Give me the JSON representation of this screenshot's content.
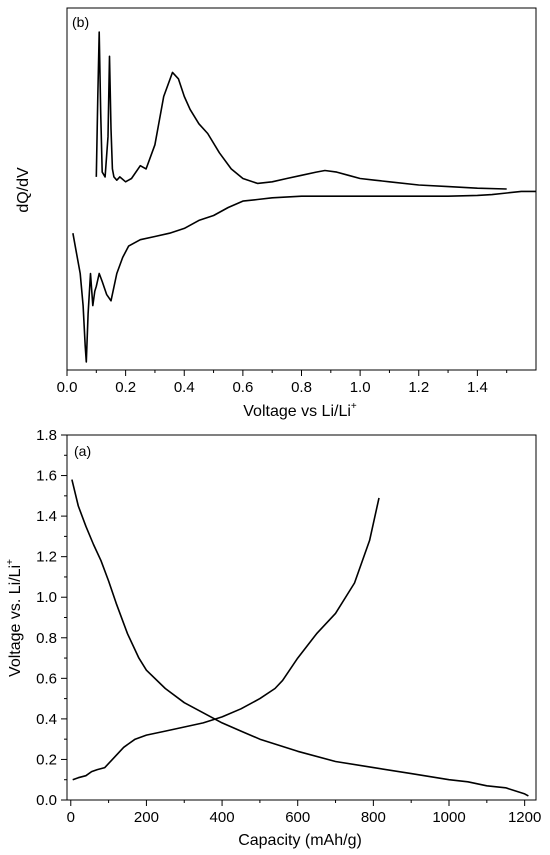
{
  "chart_data": [
    {
      "panel_label": "(b)",
      "type": "line",
      "xlabel": "Voltage vs Li/Li",
      "xlabel_sup": "+",
      "ylabel": "dQ/dV",
      "xlim": [
        0.0,
        1.6
      ],
      "ylim": [
        -1.15,
        1.1
      ],
      "xticks": [
        "0.0",
        "0.2",
        "0.4",
        "0.6",
        "0.8",
        "1.0",
        "1.2",
        "1.4"
      ],
      "yticks_shown": false,
      "series": [
        {
          "x": [
            0.1,
            0.105,
            0.11,
            0.115,
            0.12,
            0.13,
            0.14,
            0.145,
            0.15,
            0.155,
            0.16,
            0.17,
            0.18,
            0.2,
            0.22,
            0.25,
            0.27,
            0.3,
            0.33,
            0.36,
            0.38,
            0.4,
            0.42,
            0.45,
            0.48,
            0.52,
            0.56,
            0.6,
            0.65,
            0.7,
            0.75,
            0.8,
            0.85,
            0.88,
            0.92,
            0.96,
            1.0,
            1.05,
            1.1,
            1.2,
            1.3,
            1.4,
            1.5
          ],
          "y": [
            0.05,
            0.55,
            0.95,
            0.45,
            0.08,
            0.05,
            0.3,
            0.8,
            0.35,
            0.1,
            0.05,
            0.03,
            0.05,
            0.02,
            0.04,
            0.12,
            0.1,
            0.25,
            0.55,
            0.7,
            0.66,
            0.55,
            0.47,
            0.38,
            0.32,
            0.2,
            0.1,
            0.04,
            0.01,
            0.02,
            0.04,
            0.06,
            0.08,
            0.09,
            0.08,
            0.06,
            0.04,
            0.03,
            0.02,
            0.0,
            -0.01,
            -0.02,
            -0.025
          ]
        },
        {
          "x": [
            0.02,
            0.03,
            0.045,
            0.055,
            0.062,
            0.066,
            0.072,
            0.08,
            0.088,
            0.095,
            0.1,
            0.11,
            0.12,
            0.135,
            0.15,
            0.17,
            0.19,
            0.21,
            0.25,
            0.3,
            0.35,
            0.4,
            0.45,
            0.5,
            0.55,
            0.6,
            0.65,
            0.7,
            0.8,
            0.9,
            1.0,
            1.1,
            1.2,
            1.3,
            1.4,
            1.45,
            1.5,
            1.55,
            1.6
          ],
          "y": [
            -0.3,
            -0.4,
            -0.55,
            -0.75,
            -1.0,
            -1.1,
            -0.8,
            -0.55,
            -0.75,
            -0.66,
            -0.63,
            -0.55,
            -0.6,
            -0.68,
            -0.72,
            -0.55,
            -0.45,
            -0.38,
            -0.34,
            -0.32,
            -0.3,
            -0.27,
            -0.22,
            -0.19,
            -0.14,
            -0.1,
            -0.09,
            -0.08,
            -0.07,
            -0.07,
            -0.07,
            -0.07,
            -0.07,
            -0.07,
            -0.065,
            -0.06,
            -0.05,
            -0.04,
            -0.04
          ]
        }
      ]
    },
    {
      "panel_label": "(a)",
      "type": "line",
      "xlabel": "Capacity (mAh/g)",
      "ylabel": "Voltage vs. Li/Li",
      "ylabel_sup": "+",
      "xlim": [
        -10,
        1230
      ],
      "ylim": [
        0.0,
        1.8
      ],
      "xticks": [
        "0",
        "200",
        "400",
        "600",
        "800",
        "1000",
        "1200"
      ],
      "yticks": [
        "0.0",
        "0.2",
        "0.4",
        "0.6",
        "0.8",
        "1.0",
        "1.2",
        "1.4",
        "1.6",
        "1.8"
      ],
      "series": [
        {
          "x": [
            3,
            20,
            40,
            60,
            80,
            100,
            120,
            150,
            180,
            200,
            250,
            300,
            350,
            400,
            450,
            500,
            600,
            700,
            800,
            900,
            1000,
            1050,
            1100,
            1150,
            1200,
            1210
          ],
          "y": [
            1.58,
            1.45,
            1.35,
            1.26,
            1.18,
            1.08,
            0.97,
            0.82,
            0.7,
            0.64,
            0.55,
            0.48,
            0.43,
            0.38,
            0.34,
            0.3,
            0.24,
            0.19,
            0.16,
            0.13,
            0.1,
            0.09,
            0.07,
            0.06,
            0.03,
            0.02
          ]
        },
        {
          "x": [
            5,
            20,
            40,
            55,
            70,
            90,
            110,
            140,
            170,
            200,
            250,
            300,
            350,
            400,
            450,
            500,
            540,
            560,
            600,
            650,
            700,
            750,
            790,
            815
          ],
          "y": [
            0.1,
            0.11,
            0.12,
            0.14,
            0.15,
            0.16,
            0.2,
            0.26,
            0.3,
            0.32,
            0.34,
            0.36,
            0.38,
            0.41,
            0.45,
            0.5,
            0.55,
            0.59,
            0.7,
            0.82,
            0.92,
            1.07,
            1.28,
            1.49
          ]
        }
      ]
    }
  ]
}
